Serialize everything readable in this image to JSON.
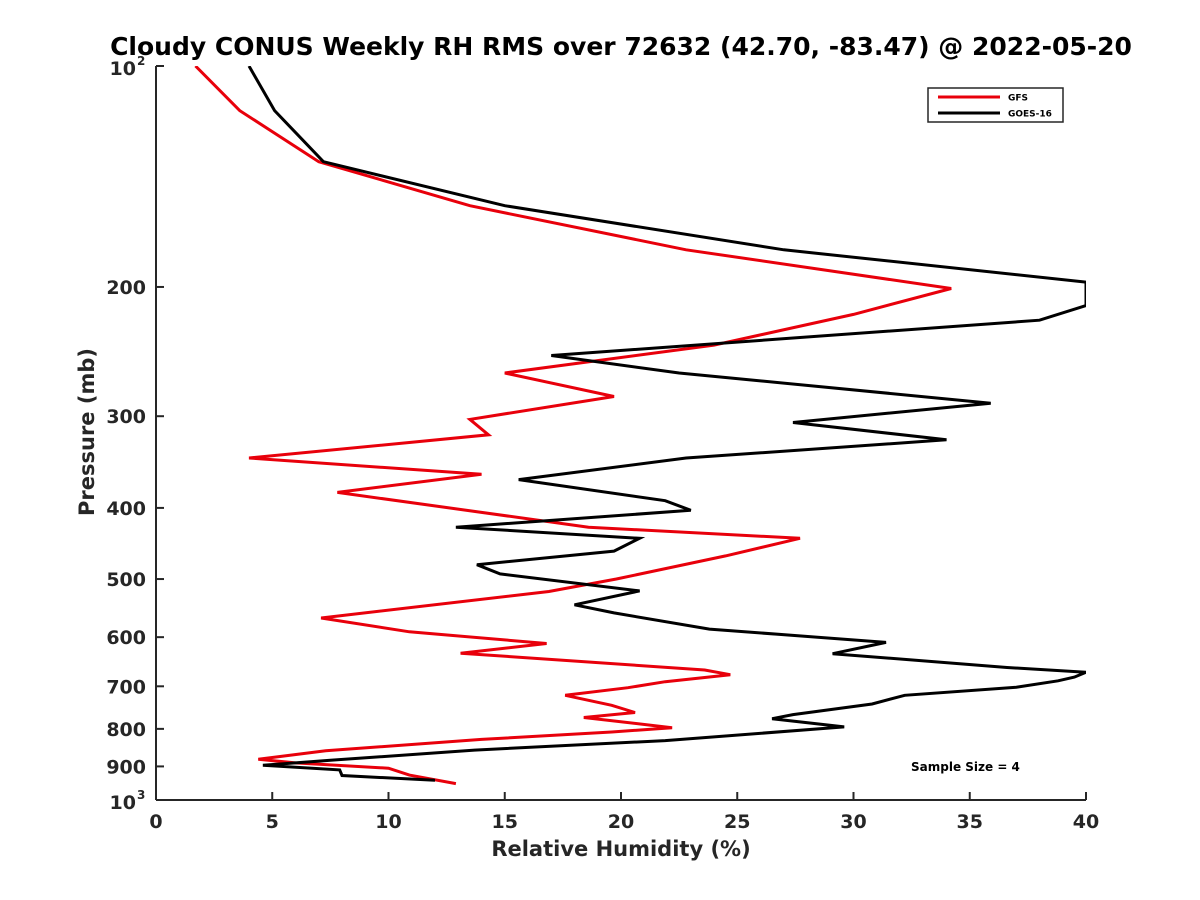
{
  "chart_data": {
    "type": "line",
    "title": "Cloudy CONUS Weekly RH RMS over 72632 (42.70, -83.47) @ 2022-05-20",
    "xlabel": "Relative Humidity (%)",
    "ylabel": "Pressure (mb)",
    "xlim": [
      0,
      40
    ],
    "ylim": [
      100,
      1000
    ],
    "y_scale": "log",
    "y_reversed": true,
    "grid": false,
    "legend_position": "top-right",
    "annotation": "Sample Size = 4",
    "x_ticks": [
      "0",
      "5",
      "10",
      "15",
      "20",
      "25",
      "30",
      "35",
      "40"
    ],
    "y_ticks": [
      {
        "value": 100,
        "base": "10",
        "exp": "2"
      },
      {
        "value": 200,
        "label": "200"
      },
      {
        "value": 300,
        "label": "300"
      },
      {
        "value": 400,
        "label": "400"
      },
      {
        "value": 500,
        "label": "500"
      },
      {
        "value": 600,
        "label": "600"
      },
      {
        "value": 700,
        "label": "700"
      },
      {
        "value": 800,
        "label": "800"
      },
      {
        "value": 900,
        "label": "900"
      },
      {
        "value": 1000,
        "base": "10",
        "exp": "3"
      }
    ],
    "series": [
      {
        "name": "GFS",
        "color": "#e8000b",
        "points": [
          [
            1.7,
            100
          ],
          [
            3.6,
            115
          ],
          [
            7.0,
            135
          ],
          [
            13.5,
            155
          ],
          [
            22.8,
            178
          ],
          [
            34.2,
            201
          ],
          [
            30.0,
            218
          ],
          [
            24.0,
            240
          ],
          [
            15.0,
            262
          ],
          [
            19.7,
            282
          ],
          [
            13.5,
            303
          ],
          [
            14.3,
            318
          ],
          [
            4.0,
            342
          ],
          [
            14.0,
            360
          ],
          [
            7.8,
            381
          ],
          [
            18.6,
            425
          ],
          [
            27.7,
            440
          ],
          [
            24.5,
            465
          ],
          [
            19.8,
            500
          ],
          [
            16.9,
            520
          ],
          [
            7.1,
            565
          ],
          [
            10.9,
            590
          ],
          [
            16.8,
            612
          ],
          [
            13.1,
            631
          ],
          [
            23.6,
            665
          ],
          [
            24.7,
            675
          ],
          [
            21.9,
            690
          ],
          [
            20.3,
            703
          ],
          [
            17.6,
            720
          ],
          [
            19.6,
            743
          ],
          [
            20.6,
            760
          ],
          [
            18.4,
            772
          ],
          [
            22.2,
            797
          ],
          [
            19.6,
            808
          ],
          [
            14.0,
            827
          ],
          [
            7.3,
            857
          ],
          [
            4.4,
            880
          ],
          [
            6.0,
            890
          ],
          [
            10.0,
            905
          ],
          [
            10.9,
            925
          ],
          [
            12.9,
            950
          ]
        ]
      },
      {
        "name": "GOES-16",
        "color": "#000000",
        "points": [
          [
            4.0,
            100
          ],
          [
            5.1,
            115
          ],
          [
            7.2,
            135
          ],
          [
            15.0,
            155
          ],
          [
            27.0,
            178
          ],
          [
            40.0,
            197
          ],
          [
            40.0,
            212
          ],
          [
            38.0,
            222
          ],
          [
            17.0,
            248
          ],
          [
            22.5,
            262
          ],
          [
            35.9,
            288
          ],
          [
            27.4,
            306
          ],
          [
            34.0,
            323
          ],
          [
            22.8,
            342
          ],
          [
            15.6,
            366
          ],
          [
            21.9,
            391
          ],
          [
            23.0,
            403
          ],
          [
            12.9,
            425
          ],
          [
            20.8,
            440
          ],
          [
            19.7,
            458
          ],
          [
            13.8,
            478
          ],
          [
            14.8,
            492
          ],
          [
            20.8,
            519
          ],
          [
            18.0,
            542
          ],
          [
            19.7,
            556
          ],
          [
            23.8,
            585
          ],
          [
            31.4,
            610
          ],
          [
            29.1,
            632
          ],
          [
            36.6,
            660
          ],
          [
            40.0,
            670
          ],
          [
            39.5,
            680
          ],
          [
            38.8,
            688
          ],
          [
            37.0,
            702
          ],
          [
            32.2,
            720
          ],
          [
            30.8,
            740
          ],
          [
            27.4,
            765
          ],
          [
            26.5,
            775
          ],
          [
            29.6,
            795
          ],
          [
            21.9,
            830
          ],
          [
            13.7,
            855
          ],
          [
            7.5,
            883
          ],
          [
            4.6,
            897
          ],
          [
            7.9,
            910
          ],
          [
            8.0,
            926
          ],
          [
            12.0,
            940
          ]
        ]
      }
    ]
  }
}
